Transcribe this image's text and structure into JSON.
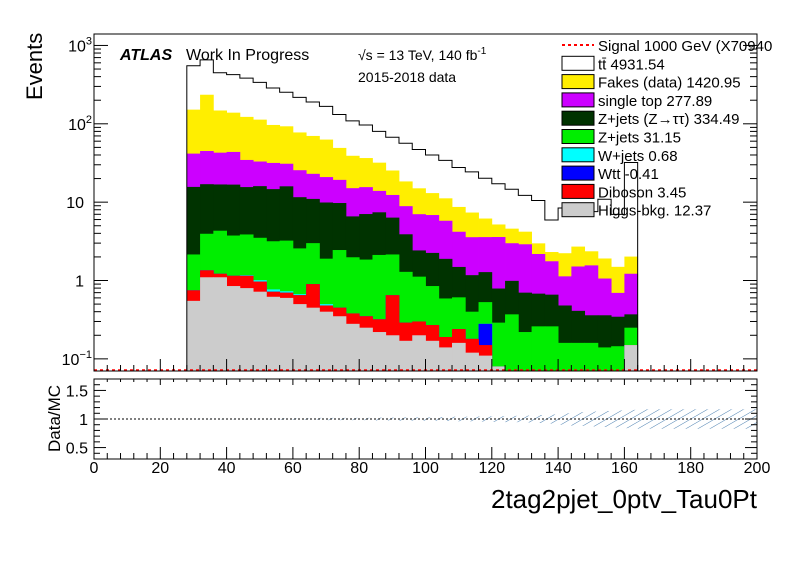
{
  "chart_data": [
    {
      "type": "area",
      "subtype": "stacked-step-histogram",
      "ylabel": "Events",
      "yscale": "log",
      "xlim": [
        0,
        200
      ],
      "ylim": [
        0.07,
        1400
      ],
      "ytick_labels": [
        {
          "value": 0.1,
          "label": "10",
          "sup": "−1"
        },
        {
          "value": 1,
          "label": "1",
          "sup": ""
        },
        {
          "value": 10,
          "label": "10",
          "sup": ""
        },
        {
          "value": 100,
          "label": "10",
          "sup": "2"
        },
        {
          "value": 1000,
          "label": "10",
          "sup": "3"
        }
      ],
      "annotations": {
        "atlas": "ATLAS",
        "status": "Work In Progress",
        "energy": "√s = 13 TeV, 140 fb",
        "energy_sup": "-1",
        "dataset": "2015-2018 data"
      },
      "legend_placement": "top-right",
      "bin_edges_start": 28,
      "bin_width": 4,
      "series": [
        {
          "name": "Signal 1000 GeV (X70940",
          "color": "#ff0000",
          "style": "dashed-line"
        },
        {
          "name": "tt̄ 4931.54",
          "color": "#ffffff",
          "values": [
            400,
            420,
            300,
            285,
            260,
            225,
            190,
            160,
            140,
            120,
            104,
            82,
            70,
            60,
            48,
            42,
            38,
            32,
            27,
            23,
            19,
            17,
            14,
            12,
            10,
            8,
            7.5,
            3.6,
            6.2,
            5.2,
            5.2,
            9,
            5.5,
            30
          ]
        },
        {
          "name": "Fakes (data) 1420.95",
          "color": "#ffee00",
          "values": [
            110,
            190,
            105,
            95,
            88,
            80,
            65,
            62,
            52,
            47,
            42,
            30,
            24,
            21,
            18,
            13,
            9.5,
            8,
            6.2,
            5.4,
            4.5,
            3.8,
            2.6,
            1.6,
            1.6,
            1.3,
            0.8,
            0.55,
            1.1,
            1.2,
            0.8,
            0.85,
            0.8,
            0.8
          ]
        },
        {
          "name": "single top 277.89",
          "color": "#cc00ff",
          "values": [
            26,
            28,
            26,
            27,
            19,
            17,
            17,
            15,
            14,
            12,
            11,
            9.5,
            8.5,
            8.5,
            6.5,
            6,
            5,
            4.6,
            4.6,
            3.9,
            2.7,
            2.4,
            2.3,
            2.8,
            2,
            2.2,
            1.5,
            1.1,
            0.65,
            1.1,
            1.2,
            0.7,
            0.35,
            0.85
          ]
        },
        {
          "name": "Z+jets (Z→ττ) 334.49",
          "color": "#003300",
          "values": [
            13.5,
            13,
            12.5,
            13,
            11.7,
            12.5,
            11.5,
            12.7,
            9,
            8,
            8,
            7.3,
            4.6,
            5.2,
            5.3,
            4.2,
            2.6,
            1.3,
            1.4,
            1.3,
            0.88,
            0.77,
            0.75,
            0.5,
            0.62,
            0.48,
            0.42,
            0.4,
            0.32,
            0.25,
            0.2,
            0.22,
            0.2,
            0.12
          ]
        },
        {
          "name": "Z+jets 31.15",
          "color": "#00ee00",
          "values": [
            1.4,
            2.6,
            3.1,
            2.6,
            2.7,
            2.5,
            2.4,
            2.5,
            1.9,
            2.1,
            1.4,
            2.0,
            1.6,
            1.5,
            1.8,
            1.5,
            1.0,
            0.82,
            0.58,
            0.4,
            0.37,
            0.22,
            0.25,
            0.21,
            0.3,
            0.16,
            0.2,
            0.21,
            0.11,
            0.11,
            0.11,
            0.09,
            0.1,
            0.1
          ]
        },
        {
          "name": "W+jets 0.68",
          "color": "#00ffff",
          "values": [
            0,
            0,
            0,
            0,
            0.02,
            0.04,
            0.05,
            0.03,
            0.02,
            0,
            0.02,
            0,
            0,
            0,
            0,
            0,
            0,
            0,
            0,
            0,
            0,
            0,
            0,
            0,
            0,
            0,
            0,
            0,
            0,
            0,
            0,
            0,
            0,
            0
          ]
        },
        {
          "name": "Wtt -0.41",
          "color": "#0000ff",
          "values": [
            0,
            0,
            0,
            0,
            0,
            0,
            0,
            0,
            0,
            0,
            0,
            0,
            0,
            0,
            0,
            0,
            0,
            0,
            0,
            0,
            0,
            0,
            0.13,
            0,
            0,
            0,
            0,
            0,
            0,
            0,
            0,
            0,
            0,
            0
          ]
        },
        {
          "name": "Diboson 3.45",
          "color": "#ff0000",
          "values": [
            0.2,
            0.25,
            0.12,
            0.3,
            0.35,
            0.25,
            0.1,
            0.1,
            0.15,
            0.45,
            0.08,
            0.1,
            0.1,
            0.1,
            0.1,
            0.45,
            0.12,
            0.1,
            0.1,
            0.05,
            0.08,
            0.06,
            0.04,
            0,
            0,
            0,
            0,
            0,
            0,
            0,
            0,
            0,
            0,
            0
          ]
        },
        {
          "name": "Higgs-bkg. 12.37",
          "color": "#cccccc",
          "values": [
            0.55,
            1.1,
            1.1,
            0.85,
            0.8,
            0.72,
            0.62,
            0.6,
            0.5,
            0.45,
            0.4,
            0.35,
            0.28,
            0.25,
            0.22,
            0.2,
            0.17,
            0.2,
            0.17,
            0.14,
            0.16,
            0.12,
            0.11,
            0.08,
            0.07,
            0.06,
            0.06,
            0.05,
            0.05,
            0.05,
            0.05,
            0.05,
            0.045,
            0.15
          ]
        }
      ]
    },
    {
      "type": "line",
      "ylabel": "Data/MC",
      "xlabel": "2tag2pjet_0ptv_Tau0Pt",
      "xlim": [
        0,
        200
      ],
      "ylim": [
        0.3,
        1.7
      ],
      "reference_line": 1,
      "xtick_labels": [
        "0",
        "20",
        "40",
        "60",
        "80",
        "100",
        "120",
        "140",
        "160",
        "180",
        "200"
      ],
      "ytick_labels": [
        "0.5",
        "1",
        "1.5"
      ],
      "uncertainty_bin_width": 4,
      "uncertainty": [
        0.01,
        0.01,
        0.01,
        0.01,
        0.01,
        0.01,
        0.01,
        0.015,
        0.015,
        0.015,
        0.02,
        0.02,
        0.02,
        0.02,
        0.025,
        0.025,
        0.03,
        0.03,
        0.03,
        0.035,
        0.04,
        0.04,
        0.045,
        0.05,
        0.055,
        0.06,
        0.07,
        0.08,
        0.1,
        0.12,
        0.13,
        0.14,
        0.15,
        0.16,
        0.17,
        0.17,
        0.17,
        0.17,
        0.17,
        0.17,
        0.17,
        0.17,
        0.17
      ]
    }
  ]
}
